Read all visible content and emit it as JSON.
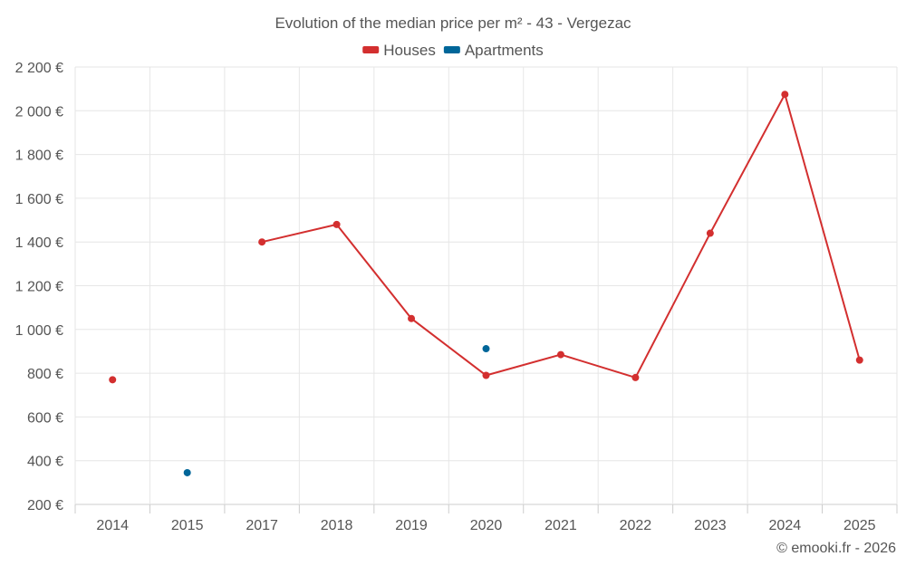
{
  "chart_data": {
    "type": "line",
    "title": "Evolution of the median price per m² - 43 - Vergezac",
    "categories": [
      "2014",
      "2015",
      "2017",
      "2018",
      "2019",
      "2020",
      "2021",
      "2022",
      "2023",
      "2024",
      "2025"
    ],
    "ylim": [
      200,
      2200
    ],
    "yticks": [
      200,
      400,
      600,
      800,
      1000,
      1200,
      1400,
      1600,
      1800,
      2000,
      2200
    ],
    "ytick_labels": [
      "200 €",
      "400 €",
      "600 €",
      "800 €",
      "1 000 €",
      "1 200 €",
      "1 400 €",
      "1 600 €",
      "1 800 €",
      "2 000 €",
      "2 200 €"
    ],
    "grid": true,
    "legend_position": "top-center",
    "series": [
      {
        "name": "Houses",
        "color": "#d32f2f",
        "values": [
          770,
          null,
          1400,
          1480,
          1050,
          790,
          885,
          780,
          1440,
          2075,
          860
        ]
      },
      {
        "name": "Apartments",
        "color": "#006699",
        "values": [
          null,
          345,
          null,
          null,
          null,
          912,
          null,
          null,
          null,
          null,
          null
        ]
      }
    ],
    "credit": "© emooki.fr - 2026"
  }
}
